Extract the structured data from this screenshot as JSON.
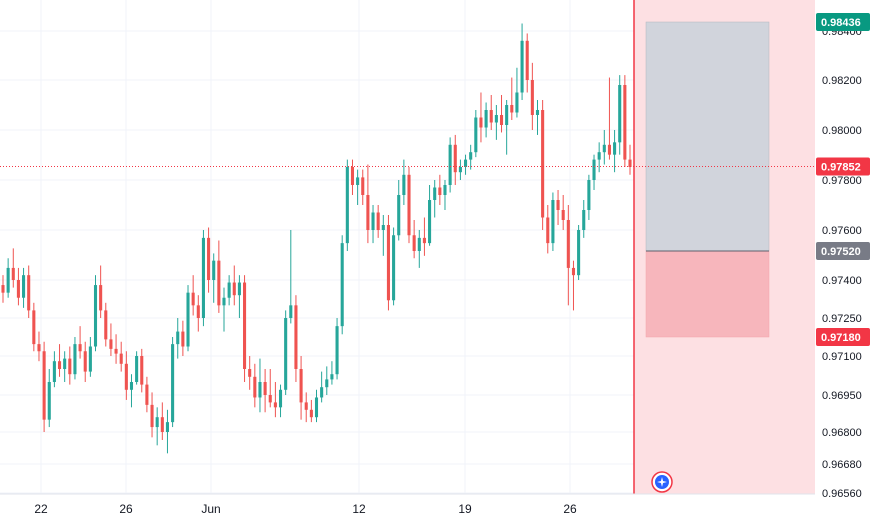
{
  "chart_data": {
    "type": "candlestick",
    "title": "",
    "xlabel": "",
    "ylabel": "",
    "x_tick_labels": [
      "22",
      "26",
      "Jun",
      "12",
      "19",
      "26"
    ],
    "y_tick_labels": [
      "0.98400",
      "0.98200",
      "0.98000",
      "0.97800",
      "0.97600",
      "0.97400",
      "0.97250",
      "0.97100",
      "0.96950",
      "0.96800",
      "0.96680",
      "0.96560"
    ],
    "ylim": [
      0.9655,
      0.985
    ],
    "price_labels": {
      "take_profit": "0.98436",
      "current": "0.97852",
      "entry": "0.97520",
      "stop_loss": "0.97180"
    },
    "levels": {
      "take_profit": 0.98436,
      "current": 0.97852,
      "entry": 0.9752,
      "stop_loss": 0.9718
    },
    "candles": [
      [
        0.9738,
        0.9742,
        0.9731,
        0.9735
      ],
      [
        0.9735,
        0.9749,
        0.9733,
        0.9745
      ],
      [
        0.9745,
        0.9753,
        0.9737,
        0.974
      ],
      [
        0.974,
        0.9745,
        0.973,
        0.9733
      ],
      [
        0.9733,
        0.9745,
        0.9729,
        0.9742
      ],
      [
        0.9742,
        0.9746,
        0.9725,
        0.9728
      ],
      [
        0.9728,
        0.9731,
        0.9712,
        0.9715
      ],
      [
        0.9715,
        0.972,
        0.9708,
        0.9712
      ],
      [
        0.9712,
        0.9716,
        0.968,
        0.9685
      ],
      [
        0.9685,
        0.9705,
        0.9682,
        0.97
      ],
      [
        0.97,
        0.9712,
        0.9698,
        0.9708
      ],
      [
        0.9708,
        0.9715,
        0.9702,
        0.9705
      ],
      [
        0.9705,
        0.9712,
        0.97,
        0.9709
      ],
      [
        0.9709,
        0.9714,
        0.9699,
        0.9703
      ],
      [
        0.9703,
        0.9718,
        0.9701,
        0.9715
      ],
      [
        0.9715,
        0.9722,
        0.9709,
        0.9712
      ],
      [
        0.9712,
        0.9716,
        0.97,
        0.9704
      ],
      [
        0.9704,
        0.9718,
        0.9702,
        0.9714
      ],
      [
        0.9714,
        0.9742,
        0.9712,
        0.9738
      ],
      [
        0.9738,
        0.9746,
        0.9725,
        0.9728
      ],
      [
        0.9728,
        0.9731,
        0.9714,
        0.9717
      ],
      [
        0.9717,
        0.9723,
        0.971,
        0.9713
      ],
      [
        0.9713,
        0.9719,
        0.9707,
        0.9711
      ],
      [
        0.9711,
        0.9716,
        0.9704,
        0.9707
      ],
      [
        0.9707,
        0.9712,
        0.9693,
        0.9697
      ],
      [
        0.9697,
        0.9703,
        0.969,
        0.97
      ],
      [
        0.97,
        0.9712,
        0.9699,
        0.971
      ],
      [
        0.971,
        0.9713,
        0.9696,
        0.9699
      ],
      [
        0.9699,
        0.9702,
        0.9688,
        0.9691
      ],
      [
        0.9691,
        0.9696,
        0.9678,
        0.9682
      ],
      [
        0.9682,
        0.969,
        0.9675,
        0.9686
      ],
      [
        0.9686,
        0.9692,
        0.9677,
        0.968
      ],
      [
        0.968,
        0.9689,
        0.9672,
        0.9684
      ],
      [
        0.9684,
        0.9718,
        0.9682,
        0.9715
      ],
      [
        0.9715,
        0.9725,
        0.9709,
        0.972
      ],
      [
        0.972,
        0.9724,
        0.971,
        0.9714
      ],
      [
        0.9714,
        0.9738,
        0.9712,
        0.9735
      ],
      [
        0.9735,
        0.9742,
        0.9726,
        0.973
      ],
      [
        0.973,
        0.9734,
        0.972,
        0.9725
      ],
      [
        0.9725,
        0.976,
        0.9722,
        0.9757
      ],
      [
        0.9757,
        0.9761,
        0.9735,
        0.974
      ],
      [
        0.974,
        0.9751,
        0.9731,
        0.9748
      ],
      [
        0.9748,
        0.9756,
        0.9727,
        0.973
      ],
      [
        0.973,
        0.9737,
        0.972,
        0.9733
      ],
      [
        0.9733,
        0.9742,
        0.973,
        0.9739
      ],
      [
        0.9739,
        0.9746,
        0.973,
        0.9734
      ],
      [
        0.9734,
        0.9742,
        0.9725,
        0.9739
      ],
      [
        0.9739,
        0.9742,
        0.97,
        0.9705
      ],
      [
        0.9705,
        0.971,
        0.9697,
        0.9702
      ],
      [
        0.9702,
        0.9707,
        0.969,
        0.9694
      ],
      [
        0.9694,
        0.9709,
        0.9688,
        0.97
      ],
      [
        0.97,
        0.9705,
        0.9688,
        0.9695
      ],
      [
        0.9695,
        0.9705,
        0.969,
        0.9692
      ],
      [
        0.9692,
        0.97,
        0.9686,
        0.969
      ],
      [
        0.969,
        0.9699,
        0.9686,
        0.9697
      ],
      [
        0.9697,
        0.9728,
        0.9695,
        0.9725
      ],
      [
        0.9725,
        0.976,
        0.9723,
        0.973
      ],
      [
        0.973,
        0.9734,
        0.97,
        0.9705
      ],
      [
        0.9705,
        0.971,
        0.9685,
        0.9692
      ],
      [
        0.9692,
        0.9696,
        0.9684,
        0.9689
      ],
      [
        0.9689,
        0.9693,
        0.9684,
        0.9686
      ],
      [
        0.9686,
        0.9697,
        0.9684,
        0.9694
      ],
      [
        0.9694,
        0.9704,
        0.9692,
        0.9698
      ],
      [
        0.9698,
        0.9706,
        0.9695,
        0.9701
      ],
      [
        0.9701,
        0.9708,
        0.9699,
        0.9703
      ],
      [
        0.9703,
        0.9725,
        0.9701,
        0.9722
      ],
      [
        0.9722,
        0.9758,
        0.9719,
        0.9755
      ],
      [
        0.9755,
        0.9788,
        0.9752,
        0.9785
      ],
      [
        0.9785,
        0.9788,
        0.9774,
        0.9778
      ],
      [
        0.9778,
        0.9784,
        0.977,
        0.9781
      ],
      [
        0.9781,
        0.9784,
        0.977,
        0.9774
      ],
      [
        0.9774,
        0.9786,
        0.9755,
        0.976
      ],
      [
        0.976,
        0.977,
        0.9755,
        0.9767
      ],
      [
        0.9767,
        0.977,
        0.9757,
        0.976
      ],
      [
        0.976,
        0.9766,
        0.975,
        0.9762
      ],
      [
        0.9762,
        0.9766,
        0.9728,
        0.9732
      ],
      [
        0.9732,
        0.9761,
        0.973,
        0.9758
      ],
      [
        0.9758,
        0.978,
        0.9756,
        0.9774
      ],
      [
        0.9774,
        0.9788,
        0.977,
        0.9782
      ],
      [
        0.9782,
        0.9785,
        0.9755,
        0.9758
      ],
      [
        0.9758,
        0.9764,
        0.9749,
        0.9752
      ],
      [
        0.9752,
        0.976,
        0.9745,
        0.9757
      ],
      [
        0.9757,
        0.9765,
        0.975,
        0.9755
      ],
      [
        0.9755,
        0.9778,
        0.9754,
        0.9772
      ],
      [
        0.9772,
        0.978,
        0.9765,
        0.9777
      ],
      [
        0.9777,
        0.9782,
        0.977,
        0.9774
      ],
      [
        0.9774,
        0.978,
        0.9768,
        0.9778
      ],
      [
        0.9778,
        0.9797,
        0.9775,
        0.9794
      ],
      [
        0.9794,
        0.9798,
        0.9778,
        0.9783
      ],
      [
        0.9783,
        0.9788,
        0.978,
        0.9785
      ],
      [
        0.9785,
        0.979,
        0.9782,
        0.9788
      ],
      [
        0.9788,
        0.9794,
        0.9784,
        0.9791
      ],
      [
        0.9791,
        0.9808,
        0.9789,
        0.9805
      ],
      [
        0.9805,
        0.9815,
        0.9795,
        0.9801
      ],
      [
        0.9801,
        0.9811,
        0.9797,
        0.9808
      ],
      [
        0.9808,
        0.9814,
        0.98,
        0.9803
      ],
      [
        0.9803,
        0.981,
        0.9796,
        0.9806
      ],
      [
        0.9806,
        0.9814,
        0.9799,
        0.9802
      ],
      [
        0.9802,
        0.9812,
        0.979,
        0.981
      ],
      [
        0.981,
        0.9821,
        0.9804,
        0.9807
      ],
      [
        0.9807,
        0.9825,
        0.9805,
        0.9815
      ],
      [
        0.9815,
        0.9843,
        0.9812,
        0.9836
      ],
      [
        0.9836,
        0.9839,
        0.9815,
        0.982
      ],
      [
        0.982,
        0.9827,
        0.98,
        0.9806
      ],
      [
        0.9806,
        0.9812,
        0.9798,
        0.9808
      ],
      [
        0.9808,
        0.9812,
        0.976,
        0.9765
      ],
      [
        0.9765,
        0.977,
        0.9751,
        0.9755
      ],
      [
        0.9755,
        0.9775,
        0.9752,
        0.9772
      ],
      [
        0.9772,
        0.9776,
        0.9762,
        0.9768
      ],
      [
        0.9768,
        0.9774,
        0.976,
        0.9764
      ],
      [
        0.9764,
        0.977,
        0.973,
        0.9745
      ],
      [
        0.9745,
        0.9748,
        0.9728,
        0.9742
      ],
      [
        0.9742,
        0.9762,
        0.974,
        0.976
      ],
      [
        0.976,
        0.9772,
        0.9757,
        0.9768
      ],
      [
        0.9768,
        0.9782,
        0.9764,
        0.978
      ],
      [
        0.978,
        0.979,
        0.9776,
        0.9788
      ],
      [
        0.9788,
        0.9795,
        0.9783,
        0.9791
      ],
      [
        0.9791,
        0.98,
        0.9786,
        0.9794
      ],
      [
        0.9794,
        0.9821,
        0.9788,
        0.979
      ],
      [
        0.979,
        0.98,
        0.9783,
        0.9795
      ],
      [
        0.9795,
        0.9822,
        0.979,
        0.9818
      ],
      [
        0.9818,
        0.9822,
        0.9785,
        0.9788
      ],
      [
        0.9788,
        0.9794,
        0.9782,
        0.9785
      ]
    ]
  },
  "colors": {
    "up": "#26a69a",
    "down": "#ef5350",
    "take_profit_label": "#089981",
    "stop_loss_label": "#f23645",
    "entry_label": "#787b86",
    "profit_zone": "#d1d4dc",
    "loss_zone": "#f7b6bc",
    "forecast_area": "#fde0e3",
    "price_line": "#f23645"
  },
  "icons": {
    "marker": "compass-icon"
  }
}
